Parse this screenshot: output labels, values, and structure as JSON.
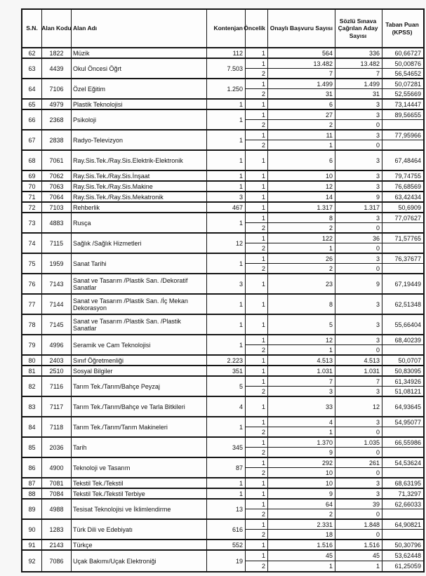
{
  "table": {
    "headers": {
      "sn": "S.N.",
      "alan_kodu": "Alan Kodu",
      "alan_adi": "Alan Adı",
      "kontenjan": "Kontenjan",
      "oncelik": "Öncelik",
      "onayli_basvuru": "Onaylı Başvuru Sayısı",
      "sozlu_cagrilan": "Sözlü Sınava Çağrılan Aday Sayısı",
      "taban_puan": "Taban Puan (KPSS)"
    },
    "rows": [
      {
        "sn": "62",
        "alan_kodu": "1822",
        "alan_adi": "Müzik",
        "kontenjan": "112",
        "oncelik_rows": [
          {
            "oncelik": "1",
            "onayli_basvuru": "564",
            "sozlu_cagrilan": "336",
            "taban_puan": "60,66727"
          }
        ]
      },
      {
        "sn": "63",
        "alan_kodu": "4439",
        "alan_adi": "Okul Öncesi Öğrt",
        "kontenjan": "7.503",
        "oncelik_rows": [
          {
            "oncelik": "1",
            "onayli_basvuru": "13.482",
            "sozlu_cagrilan": "13.482",
            "taban_puan": "50,00876"
          },
          {
            "oncelik": "2",
            "onayli_basvuru": "7",
            "sozlu_cagrilan": "7",
            "taban_puan": "56,54652"
          }
        ]
      },
      {
        "sn": "64",
        "alan_kodu": "7106",
        "alan_adi": "Özel Eğitim",
        "kontenjan": "1.250",
        "oncelik_rows": [
          {
            "oncelik": "1",
            "onayli_basvuru": "1.499",
            "sozlu_cagrilan": "1.499",
            "taban_puan": "50,07281"
          },
          {
            "oncelik": "2",
            "onayli_basvuru": "31",
            "sozlu_cagrilan": "31",
            "taban_puan": "52,55669"
          }
        ]
      },
      {
        "sn": "65",
        "alan_kodu": "4979",
        "alan_adi": "Plastik Teknolojisi",
        "kontenjan": "1",
        "oncelik_rows": [
          {
            "oncelik": "1",
            "onayli_basvuru": "6",
            "sozlu_cagrilan": "3",
            "taban_puan": "73,14447"
          }
        ]
      },
      {
        "sn": "66",
        "alan_kodu": "2368",
        "alan_adi": "Psikoloji",
        "kontenjan": "1",
        "oncelik_rows": [
          {
            "oncelik": "1",
            "onayli_basvuru": "27",
            "sozlu_cagrilan": "3",
            "taban_puan": "89,56655"
          },
          {
            "oncelik": "2",
            "onayli_basvuru": "2",
            "sozlu_cagrilan": "0",
            "taban_puan": ""
          }
        ]
      },
      {
        "sn": "67",
        "alan_kodu": "2838",
        "alan_adi": "Radyo-Televizyon",
        "kontenjan": "1",
        "oncelik_rows": [
          {
            "oncelik": "1",
            "onayli_basvuru": "11",
            "sozlu_cagrilan": "3",
            "taban_puan": "77,95966"
          },
          {
            "oncelik": "2",
            "onayli_basvuru": "1",
            "sozlu_cagrilan": "0",
            "taban_puan": ""
          }
        ]
      },
      {
        "sn": "68",
        "alan_kodu": "7061",
        "alan_adi": "Ray.Sis.Tek./Ray.Sis.Elektrik-Elektronik",
        "kontenjan": "1",
        "tall": true,
        "oncelik_rows": [
          {
            "oncelik": "1",
            "onayli_basvuru": "6",
            "sozlu_cagrilan": "3",
            "taban_puan": "67,48464"
          }
        ]
      },
      {
        "sn": "69",
        "alan_kodu": "7062",
        "alan_adi": "Ray.Sis.Tek./Ray.Sis.İnşaat",
        "kontenjan": "1",
        "oncelik_rows": [
          {
            "oncelik": "1",
            "onayli_basvuru": "10",
            "sozlu_cagrilan": "3",
            "taban_puan": "79,74755"
          }
        ]
      },
      {
        "sn": "70",
        "alan_kodu": "7063",
        "alan_adi": "Ray.Sis.Tek./Ray.Sis.Makine",
        "kontenjan": "1",
        "oncelik_rows": [
          {
            "oncelik": "1",
            "onayli_basvuru": "12",
            "sozlu_cagrilan": "3",
            "taban_puan": "76,68569"
          }
        ]
      },
      {
        "sn": "71",
        "alan_kodu": "7064",
        "alan_adi": "Ray.Sis.Tek./Ray.Sis.Mekatronik",
        "kontenjan": "3",
        "oncelik_rows": [
          {
            "oncelik": "1",
            "onayli_basvuru": "14",
            "sozlu_cagrilan": "9",
            "taban_puan": "63,42434"
          }
        ]
      },
      {
        "sn": "72",
        "alan_kodu": "7103",
        "alan_adi": "Rehberlik",
        "kontenjan": "467",
        "oncelik_rows": [
          {
            "oncelik": "1",
            "onayli_basvuru": "1.317",
            "sozlu_cagrilan": "1.317",
            "taban_puan": "50,6909"
          }
        ]
      },
      {
        "sn": "73",
        "alan_kodu": "4883",
        "alan_adi": "Rusça",
        "kontenjan": "1",
        "oncelik_rows": [
          {
            "oncelik": "1",
            "onayli_basvuru": "8",
            "sozlu_cagrilan": "3",
            "taban_puan": "77,07627"
          },
          {
            "oncelik": "2",
            "onayli_basvuru": "2",
            "sozlu_cagrilan": "0",
            "taban_puan": ""
          }
        ]
      },
      {
        "sn": "74",
        "alan_kodu": "7115",
        "alan_adi": "Sağlık /Sağlık Hizmetleri",
        "kontenjan": "12",
        "oncelik_rows": [
          {
            "oncelik": "1",
            "onayli_basvuru": "122",
            "sozlu_cagrilan": "36",
            "taban_puan": "71,57765"
          },
          {
            "oncelik": "2",
            "onayli_basvuru": "1",
            "sozlu_cagrilan": "0",
            "taban_puan": ""
          }
        ]
      },
      {
        "sn": "75",
        "alan_kodu": "1959",
        "alan_adi": "Sanat Tarihi",
        "kontenjan": "1",
        "oncelik_rows": [
          {
            "oncelik": "1",
            "onayli_basvuru": "26",
            "sozlu_cagrilan": "3",
            "taban_puan": "76,37677"
          },
          {
            "oncelik": "2",
            "onayli_basvuru": "2",
            "sozlu_cagrilan": "0",
            "taban_puan": ""
          }
        ]
      },
      {
        "sn": "76",
        "alan_kodu": "7143",
        "alan_adi": "Sanat ve Tasarım /Plastik San. /Dekoratif Sanatlar",
        "kontenjan": "3",
        "tall": true,
        "oncelik_rows": [
          {
            "oncelik": "1",
            "onayli_basvuru": "23",
            "sozlu_cagrilan": "9",
            "taban_puan": "67,19449"
          }
        ]
      },
      {
        "sn": "77",
        "alan_kodu": "7144",
        "alan_adi": "Sanat ve Tasarım /Plastik San. /İç Mekan Dekorasyon",
        "kontenjan": "1",
        "tall": true,
        "oncelik_rows": [
          {
            "oncelik": "1",
            "onayli_basvuru": "8",
            "sozlu_cagrilan": "3",
            "taban_puan": "62,51348"
          }
        ]
      },
      {
        "sn": "78",
        "alan_kodu": "7145",
        "alan_adi": "Sanat ve Tasarım /Plastik San. /Plastik Sanatlar",
        "kontenjan": "1",
        "tall": true,
        "oncelik_rows": [
          {
            "oncelik": "1",
            "onayli_basvuru": "5",
            "sozlu_cagrilan": "3",
            "taban_puan": "55,66404"
          }
        ]
      },
      {
        "sn": "79",
        "alan_kodu": "4996",
        "alan_adi": "Seramik ve Cam Teknolojisi",
        "kontenjan": "1",
        "oncelik_rows": [
          {
            "oncelik": "1",
            "onayli_basvuru": "12",
            "sozlu_cagrilan": "3",
            "taban_puan": "68,40239"
          },
          {
            "oncelik": "2",
            "onayli_basvuru": "1",
            "sozlu_cagrilan": "0",
            "taban_puan": ""
          }
        ]
      },
      {
        "sn": "80",
        "alan_kodu": "2403",
        "alan_adi": "Sınıf Öğretmenliği",
        "kontenjan": "2.223",
        "oncelik_rows": [
          {
            "oncelik": "1",
            "onayli_basvuru": "4.513",
            "sozlu_cagrilan": "4.513",
            "taban_puan": "50,0707"
          }
        ]
      },
      {
        "sn": "81",
        "alan_kodu": "2510",
        "alan_adi": "Sosyal Bilgiler",
        "kontenjan": "351",
        "oncelik_rows": [
          {
            "oncelik": "1",
            "onayli_basvuru": "1.031",
            "sozlu_cagrilan": "1.031",
            "taban_puan": "50,83095"
          }
        ]
      },
      {
        "sn": "82",
        "alan_kodu": "7116",
        "alan_adi": "Tarım Tek./Tarım/Bahçe Peyzaj",
        "kontenjan": "5",
        "oncelik_rows": [
          {
            "oncelik": "1",
            "onayli_basvuru": "7",
            "sozlu_cagrilan": "7",
            "taban_puan": "61,34926"
          },
          {
            "oncelik": "2",
            "onayli_basvuru": "3",
            "sozlu_cagrilan": "3",
            "taban_puan": "51,08121"
          }
        ]
      },
      {
        "sn": "83",
        "alan_kodu": "7117",
        "alan_adi": "Tarım Tek./Tarım/Bahçe ve Tarla Bitkileri",
        "kontenjan": "4",
        "tall": true,
        "oncelik_rows": [
          {
            "oncelik": "1",
            "onayli_basvuru": "33",
            "sozlu_cagrilan": "12",
            "taban_puan": "64,93645"
          }
        ]
      },
      {
        "sn": "84",
        "alan_kodu": "7118",
        "alan_adi": "Tarım Tek./Tarım/Tarım Makineleri",
        "kontenjan": "1",
        "oncelik_rows": [
          {
            "oncelik": "1",
            "onayli_basvuru": "4",
            "sozlu_cagrilan": "3",
            "taban_puan": "54,95077"
          },
          {
            "oncelik": "2",
            "onayli_basvuru": "1",
            "sozlu_cagrilan": "0",
            "taban_puan": ""
          }
        ]
      },
      {
        "sn": "85",
        "alan_kodu": "2036",
        "alan_adi": "Tarih",
        "kontenjan": "345",
        "oncelik_rows": [
          {
            "oncelik": "1",
            "onayli_basvuru": "1.370",
            "sozlu_cagrilan": "1.035",
            "taban_puan": "66,55986"
          },
          {
            "oncelik": "2",
            "onayli_basvuru": "9",
            "sozlu_cagrilan": "0",
            "taban_puan": ""
          }
        ]
      },
      {
        "sn": "86",
        "alan_kodu": "4900",
        "alan_adi": "Teknoloji ve Tasarım",
        "kontenjan": "87",
        "oncelik_rows": [
          {
            "oncelik": "1",
            "onayli_basvuru": "292",
            "sozlu_cagrilan": "261",
            "taban_puan": "54,53624"
          },
          {
            "oncelik": "2",
            "onayli_basvuru": "10",
            "sozlu_cagrilan": "0",
            "taban_puan": ""
          }
        ]
      },
      {
        "sn": "87",
        "alan_kodu": "7081",
        "alan_adi": "Tekstil Tek./Tekstil",
        "kontenjan": "1",
        "oncelik_rows": [
          {
            "oncelik": "1",
            "onayli_basvuru": "10",
            "sozlu_cagrilan": "3",
            "taban_puan": "68,63195"
          }
        ]
      },
      {
        "sn": "88",
        "alan_kodu": "7084",
        "alan_adi": "Tekstil Tek./Tekstil Terbiye",
        "kontenjan": "1",
        "oncelik_rows": [
          {
            "oncelik": "1",
            "onayli_basvuru": "9",
            "sozlu_cagrilan": "3",
            "taban_puan": "71,3297"
          }
        ]
      },
      {
        "sn": "89",
        "alan_kodu": "4988",
        "alan_adi": "Tesisat Teknolojisi ve İklimlendirme",
        "kontenjan": "13",
        "oncelik_rows": [
          {
            "oncelik": "1",
            "onayli_basvuru": "64",
            "sozlu_cagrilan": "39",
            "taban_puan": "62,66033"
          },
          {
            "oncelik": "2",
            "onayli_basvuru": "2",
            "sozlu_cagrilan": "0",
            "taban_puan": ""
          }
        ]
      },
      {
        "sn": "90",
        "alan_kodu": "1283",
        "alan_adi": "Türk Dili ve Edebiyatı",
        "kontenjan": "616",
        "oncelik_rows": [
          {
            "oncelik": "1",
            "onayli_basvuru": "2.331",
            "sozlu_cagrilan": "1.848",
            "taban_puan": "64,90821"
          },
          {
            "oncelik": "2",
            "onayli_basvuru": "18",
            "sozlu_cagrilan": "0",
            "taban_puan": ""
          }
        ]
      },
      {
        "sn": "91",
        "alan_kodu": "2143",
        "alan_adi": "Türkçe",
        "kontenjan": "552",
        "oncelik_rows": [
          {
            "oncelik": "1",
            "onayli_basvuru": "1.516",
            "sozlu_cagrilan": "1.516",
            "taban_puan": "50,30796"
          }
        ]
      },
      {
        "sn": "92",
        "alan_kodu": "7086",
        "alan_adi": "Uçak Bakımı/Uçak Elektroniği",
        "kontenjan": "19",
        "oncelik_rows": [
          {
            "oncelik": "1",
            "onayli_basvuru": "45",
            "sozlu_cagrilan": "45",
            "taban_puan": "53,62448"
          },
          {
            "oncelik": "2",
            "onayli_basvuru": "1",
            "sozlu_cagrilan": "1",
            "taban_puan": "61,25059"
          }
        ]
      }
    ]
  }
}
